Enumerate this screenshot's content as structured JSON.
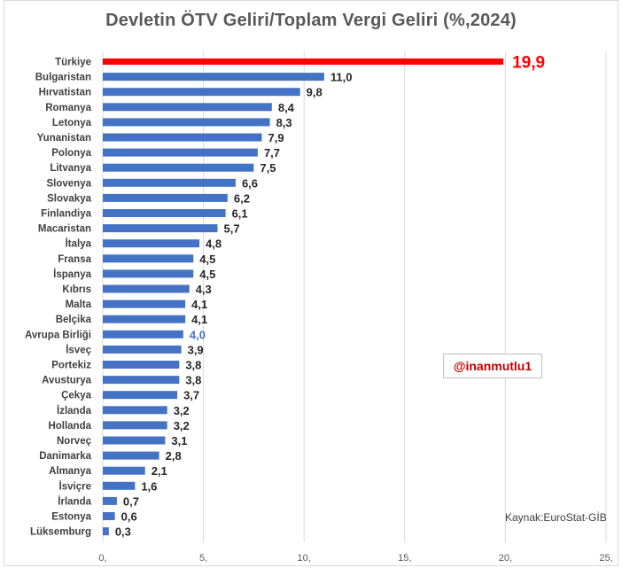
{
  "title": "Devletin ÖTV Geliri/Toplam Vergi Geliri (%,2024)",
  "handle": "@inanmutlu1",
  "source": "Kaynak:EuroStat-GİB",
  "colors": {
    "bar": "#4472c4",
    "highlight": "#ff0000",
    "eu_label": "#4472c4"
  },
  "chart_data": {
    "type": "bar",
    "orientation": "horizontal",
    "title": "Devletin ÖTV Geliri/Toplam Vergi Geliri (%,2024)",
    "xlim": [
      0,
      25
    ],
    "x_ticks": [
      "0,",
      "5,",
      "10,",
      "15,",
      "20,",
      "25,"
    ],
    "grid": true,
    "categories": [
      "Türkiye",
      "Bulgaristan",
      "Hırvatistan",
      "Romanya",
      "Letonya",
      "Yunanistan",
      "Polonya",
      "Litvanya",
      "Slovenya",
      "Slovakya",
      "Finlandiya",
      "Macaristan",
      "İtalya",
      "Fransa",
      "İspanya",
      "Kıbrıs",
      "Malta",
      "Belçika",
      "Avrupa Birliği",
      "İsveç",
      "Portekiz",
      "Avusturya",
      "Çekya",
      "İzlanda",
      "Hollanda",
      "Norveç",
      "Danimarka",
      "Almanya",
      "İsviçre",
      "İrlanda",
      "Estonya",
      "Lüksemburg"
    ],
    "values": [
      19.9,
      11.0,
      9.8,
      8.4,
      8.3,
      7.9,
      7.7,
      7.5,
      6.6,
      6.2,
      6.1,
      5.7,
      4.8,
      4.5,
      4.5,
      4.3,
      4.1,
      4.1,
      4.0,
      3.9,
      3.8,
      3.8,
      3.7,
      3.2,
      3.2,
      3.1,
      2.8,
      2.1,
      1.6,
      0.7,
      0.6,
      0.3
    ],
    "value_labels": [
      "19,9",
      "11,0",
      "9,8",
      "8,4",
      "8,3",
      "7,9",
      "7,7",
      "7,5",
      "6,6",
      "6,2",
      "6,1",
      "5,7",
      "4,8",
      "4,5",
      "4,5",
      "4,3",
      "4,1",
      "4,1",
      "4,0",
      "3,9",
      "3,8",
      "3,8",
      "3,7",
      "3,2",
      "3,2",
      "3,1",
      "2,8",
      "2,1",
      "1,6",
      "0,7",
      "0,6",
      "0,3"
    ],
    "highlight": "Türkiye",
    "reference": "Avrupa Birliği"
  }
}
